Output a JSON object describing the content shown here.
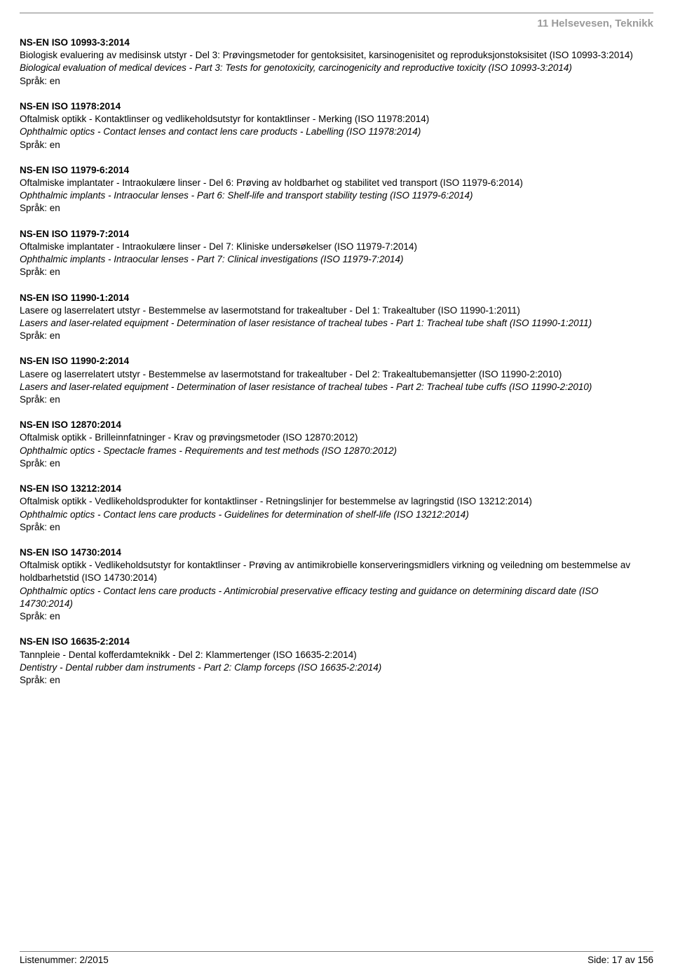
{
  "section_header": "11  Helsevesen, Teknikk",
  "entries": [
    {
      "code": "NS-EN ISO 10993-3:2014",
      "no": "Biologisk evaluering av medisinsk utstyr - Del 3: Prøvingsmetoder for gentoksisitet, karsinogenisitet og reproduksjonstoksisitet (ISO 10993-3:2014)",
      "en": "Biological evaluation of medical devices - Part 3: Tests for genotoxicity, carcinogenicity and reproductive toxicity (ISO 10993-3:2014)",
      "lang": "Språk: en"
    },
    {
      "code": "NS-EN ISO 11978:2014",
      "no": "Oftalmisk optikk - Kontaktlinser og vedlikeholdsutstyr for kontaktlinser - Merking (ISO 11978:2014)",
      "en": "Ophthalmic optics - Contact lenses and contact lens care products - Labelling (ISO 11978:2014)",
      "lang": "Språk: en"
    },
    {
      "code": "NS-EN ISO 11979-6:2014",
      "no": "Oftalmiske implantater - Intraokulære linser - Del 6: Prøving av holdbarhet og stabilitet ved transport (ISO 11979-6:2014)",
      "en": "Ophthalmic implants - Intraocular lenses - Part 6: Shelf-life and transport stability testing (ISO 11979-6:2014)",
      "lang": "Språk: en"
    },
    {
      "code": "NS-EN ISO 11979-7:2014",
      "no": "Oftalmiske implantater - Intraokulære linser - Del 7: Kliniske undersøkelser (ISO 11979-7:2014)",
      "en": "Ophthalmic implants - Intraocular lenses - Part 7: Clinical investigations (ISO 11979-7:2014)",
      "lang": "Språk: en"
    },
    {
      "code": "NS-EN ISO 11990-1:2014",
      "no": "Lasere og laserrelatert utstyr - Bestemmelse av lasermotstand for trakealtuber - Del 1: Trakealtuber (ISO 11990-1:2011)",
      "en": "Lasers and laser-related equipment - Determination of laser resistance of tracheal tubes - Part 1: Tracheal tube shaft (ISO 11990-1:2011)",
      "lang": "Språk: en"
    },
    {
      "code": "NS-EN ISO 11990-2:2014",
      "no": "Lasere og laserrelatert utstyr - Bestemmelse av lasermotstand for trakealtuber - Del 2: Trakealtubemansjetter (ISO 11990-2:2010)",
      "en": "Lasers and laser-related equipment - Determination of laser resistance of tracheal tubes - Part 2: Tracheal tube cuffs (ISO 11990-2:2010)",
      "lang": "Språk: en"
    },
    {
      "code": "NS-EN ISO 12870:2014",
      "no": "Oftalmisk optikk - Brilleinnfatninger - Krav og prøvingsmetoder (ISO 12870:2012)",
      "en": "Ophthalmic optics - Spectacle frames - Requirements and test methods (ISO 12870:2012)",
      "lang": "Språk: en"
    },
    {
      "code": "NS-EN ISO 13212:2014",
      "no": "Oftalmisk optikk - Vedlikeholdsprodukter for kontaktlinser - Retningslinjer for bestemmelse av lagringstid (ISO 13212:2014)",
      "en": "Ophthalmic optics - Contact lens care products - Guidelines for determination of shelf-life (ISO 13212:2014)",
      "lang": "Språk: en"
    },
    {
      "code": "NS-EN ISO 14730:2014",
      "no": "Oftalmisk optikk - Vedlikeholdsutstyr for kontaktlinser - Prøving av antimikrobielle konserveringsmidlers virkning og veiledning om bestemmelse av holdbarhetstid (ISO 14730:2014)",
      "en": "Ophthalmic optics - Contact lens care products - Antimicrobial preservative efficacy testing and guidance on determining discard date (ISO 14730:2014)",
      "lang": "Språk: en"
    },
    {
      "code": "NS-EN ISO 16635-2:2014",
      "no": "Tannpleie - Dental kofferdamteknikk - Del 2: Klammertenger (ISO 16635-2:2014)",
      "en": "Dentistry - Dental rubber dam instruments - Part 2: Clamp forceps (ISO 16635-2:2014)",
      "lang": "Språk: en"
    }
  ],
  "footer": {
    "left": "Listenummer: 2/2015",
    "right": "Side: 17 av 156"
  }
}
